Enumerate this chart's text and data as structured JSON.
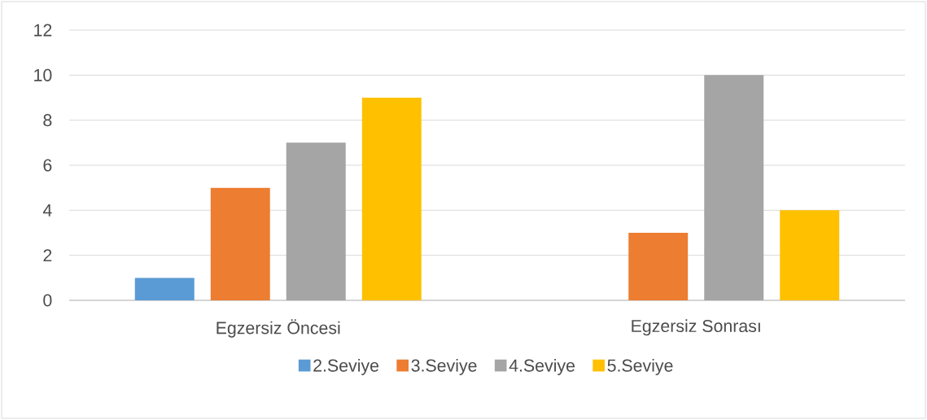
{
  "chart_data": {
    "type": "bar",
    "categories": [
      "Egzersiz Öncesi",
      "Egzersiz Sonrası"
    ],
    "series": [
      {
        "name": "2.Seviye",
        "color": "#5b9bd5",
        "values": [
          1,
          0
        ]
      },
      {
        "name": "3.Seviye",
        "color": "#ed7d31",
        "values": [
          5,
          3
        ]
      },
      {
        "name": "4.Seviye",
        "color": "#a5a5a5",
        "values": [
          7,
          10
        ]
      },
      {
        "name": "5.Seviye",
        "color": "#ffc000",
        "values": [
          9,
          4
        ]
      }
    ],
    "ylim": [
      0,
      12
    ],
    "yticks": [
      0,
      2,
      4,
      6,
      8,
      10,
      12
    ],
    "grid": "y",
    "legend": "bottom"
  }
}
